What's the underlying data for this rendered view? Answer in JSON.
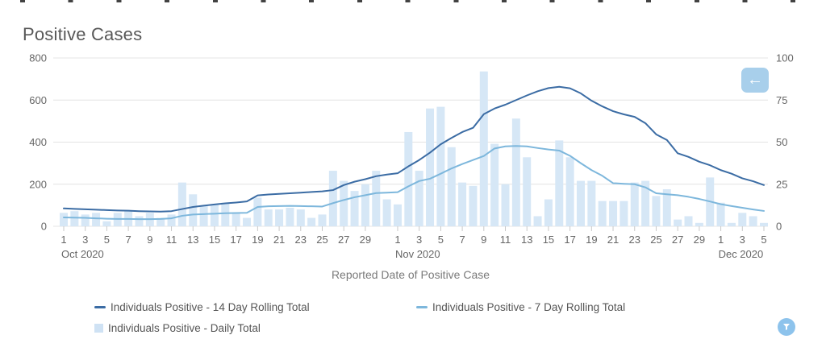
{
  "title": "Positive Cases",
  "x_axis_label": "Reported Date of Positive Case",
  "legend": [
    {
      "label": "Individuals Positive - 14 Day Rolling Total",
      "marker": "line",
      "color": "#3b6ca4"
    },
    {
      "label": "Individuals Positive - 7 Day Rolling Total",
      "marker": "line",
      "color": "#7db7dc"
    },
    {
      "label": "Individuals Positive - Daily Total",
      "marker": "square",
      "color": "#cfe2f4"
    }
  ],
  "buttons": {
    "back": {
      "icon": "left-arrow",
      "glyph": "←",
      "background": "#a8cfeb"
    },
    "filter": {
      "icon": "funnel",
      "background": "#8dc3ec"
    }
  },
  "colors": {
    "bar": "#d6e7f6",
    "line_14day": "#3b6ca4",
    "line_7day": "#7db7dc",
    "gridline": "#e4e4e4",
    "tick": "#c9c9c9",
    "axis_text": "#666666"
  },
  "chart_data": {
    "type": "bar",
    "subtype": "combo-bar-and-lines",
    "title": "Positive Cases",
    "xlabel": "Reported Date of Positive Case",
    "grid": true,
    "legend_position": "bottom",
    "left_axis": {
      "ticks": [
        0,
        200,
        400,
        600,
        800
      ],
      "range": [
        0,
        800
      ]
    },
    "right_axis": {
      "ticks": [
        0,
        25,
        50,
        75,
        100
      ],
      "range": [
        0,
        100
      ]
    },
    "x_months": [
      {
        "label": "Oct 2020",
        "days": 31,
        "tick_days": [
          1,
          3,
          5,
          7,
          9,
          11,
          13,
          15,
          17,
          19,
          21,
          23,
          25,
          27,
          29
        ]
      },
      {
        "label": "Nov 2020",
        "days": 30,
        "tick_days": [
          1,
          3,
          5,
          7,
          9,
          11,
          13,
          15,
          17,
          19,
          21,
          23,
          25,
          27,
          29
        ]
      },
      {
        "label": "Dec 2020",
        "days": 5,
        "tick_days": [
          1,
          3,
          5
        ]
      }
    ],
    "series": [
      {
        "name": "Individuals Positive - 14 Day Rolling Total",
        "type": "line",
        "axis": "left",
        "color": "#3b6ca4",
        "values": [
          85,
          83,
          81,
          79,
          77,
          75,
          74,
          72,
          71,
          70,
          72,
          82,
          92,
          98,
          104,
          109,
          113,
          118,
          147,
          151,
          154,
          157,
          160,
          163,
          166,
          172,
          196,
          212,
          224,
          238,
          246,
          252,
          285,
          315,
          350,
          390,
          420,
          448,
          468,
          533,
          560,
          578,
          600,
          622,
          642,
          657,
          663,
          656,
          632,
          597,
          570,
          547,
          532,
          520,
          490,
          437,
          410,
          347,
          330,
          307,
          290,
          267,
          250,
          228,
          214,
          196
        ]
      },
      {
        "name": "Individuals Positive - 7 Day Rolling Total",
        "type": "line",
        "axis": "left",
        "color": "#7db7dc",
        "values": [
          42,
          41,
          40,
          38,
          36,
          35,
          35,
          34,
          34,
          35,
          38,
          50,
          56,
          58,
          60,
          62,
          63,
          64,
          92,
          95,
          96,
          97,
          96,
          95,
          94,
          110,
          125,
          138,
          148,
          158,
          160,
          162,
          190,
          215,
          226,
          250,
          275,
          296,
          315,
          334,
          370,
          380,
          382,
          380,
          372,
          365,
          360,
          335,
          300,
          267,
          240,
          205,
          202,
          200,
          185,
          157,
          152,
          148,
          140,
          130,
          118,
          105,
          96,
          88,
          80,
          73
        ]
      },
      {
        "name": "Individuals Positive - Daily Total",
        "type": "bar",
        "axis": "right",
        "color": "#d6e7f6",
        "values": [
          8,
          9,
          7,
          8,
          3,
          8,
          9,
          6,
          8,
          5,
          7,
          26,
          19,
          12,
          13,
          14,
          8,
          5,
          17,
          10,
          10,
          11,
          10,
          5,
          7,
          33,
          27,
          21,
          25,
          33,
          16,
          13,
          56,
          33,
          70,
          71,
          47,
          26,
          24,
          92,
          49,
          25,
          64,
          41,
          6,
          16,
          51,
          41,
          27,
          27,
          15,
          15,
          15,
          26,
          27,
          18,
          22,
          4,
          6,
          2,
          29,
          14,
          2,
          8,
          6,
          2
        ]
      }
    ]
  }
}
